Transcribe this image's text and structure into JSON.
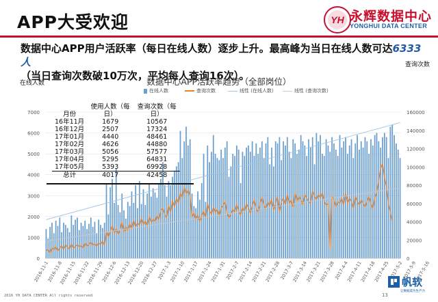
{
  "slide": {
    "title": "APP大受欢迎",
    "logo_cn": "永辉数据中心",
    "logo_en": "YONGHUI DATA CENTER",
    "logo_mark": "YH",
    "desc_line1_a": "数据中心APP用户活跃率（每日在线人数）逐步上升。最高峰为当日在线人数可达",
    "desc_line1_hl": "6333人",
    "desc_line2": "（当日查询次数破10万次，平均每人查询16次）。",
    "footer": "2016 YH DATA CENTER All rights reserved",
    "page_number": "13",
    "brand_name": "帆软",
    "brand_sub": "让数据成为生产力"
  },
  "table": {
    "headers": [
      "月份",
      "使用人数（每日）",
      "查询次数（每日）"
    ],
    "rows": [
      [
        "16年11月",
        "1679",
        "10567"
      ],
      [
        "16年12月",
        "2507",
        "17324"
      ],
      [
        "17年01月",
        "4440",
        "48461"
      ],
      [
        "17年02月",
        "4626",
        "44880"
      ],
      [
        "17年03月",
        "5056",
        "57577"
      ],
      [
        "17年04月",
        "5295",
        "64831"
      ],
      [
        "17年05月",
        "5393",
        "69928"
      ]
    ],
    "total": [
      "总计",
      "4017",
      "42458"
    ]
  },
  "chart_data": {
    "type": "bar",
    "title": "数据中心APP活跃率趋势（全部岗位）",
    "ylabel": "在线人数",
    "y2label": "查询次数",
    "ylim": [
      0,
      7000
    ],
    "y2lim": [
      0,
      160000
    ],
    "yticks": [
      0,
      1000,
      2000,
      3000,
      4000,
      5000,
      6000,
      7000
    ],
    "y2ticks": [
      0,
      20000,
      40000,
      60000,
      80000,
      100000,
      120000,
      140000,
      160000
    ],
    "x_tick_labels": [
      "2016-11-1",
      "2016-11-8",
      "2016-11-15",
      "2016-11-22",
      "2016-11-29",
      "2016-12-6",
      "2016-12-13",
      "2016-12-20",
      "2016-12-27",
      "2017-1-3",
      "2017-1-10",
      "2017-1-17",
      "2017-1-24",
      "2017-1-31",
      "2017-2-7",
      "2017-2-14",
      "2017-2-21",
      "2017-2-28",
      "2017-3-7",
      "2017-3-14",
      "2017-3-21",
      "2017-3-28",
      "2017-4-4",
      "2017-4-11",
      "2017-4-18",
      "2017-4-25",
      "2017-5-2",
      "2017-5-9",
      "2017-5-16"
    ],
    "legend": [
      "在线人数",
      "查询次数",
      "线性 (在线人数)",
      "线性 (查询次数)"
    ],
    "colors": {
      "bars": "#6b9fd0",
      "query": "#e8822a",
      "trend_users": "#9ec4e6",
      "trend_query": "#c9c9c9"
    },
    "series": [
      {
        "name": "在线人数",
        "type": "bar",
        "axis": "left",
        "values": [
          1400,
          950,
          1500,
          1700,
          1200,
          1800,
          1550,
          1950,
          1250,
          1700,
          1600,
          1450,
          1250,
          2050,
          1600,
          1850,
          1950,
          1350,
          1700,
          1550,
          1800,
          1400,
          1650,
          1950,
          1500,
          1750,
          1200,
          1850,
          1600,
          1450,
          1700,
          3600,
          2100,
          3400,
          3800,
          2650,
          4300,
          2550,
          2200,
          3100,
          2300,
          1900,
          2700,
          2500,
          3200,
          2650,
          3500,
          2400,
          3700,
          2600,
          3300,
          2550,
          3100,
          3550,
          2950,
          3350,
          3150,
          2900,
          3600,
          3800,
          4600,
          3500,
          2950,
          3700,
          3500,
          3900,
          4200,
          4400,
          4600,
          6100,
          4800,
          5600,
          6300,
          5400,
          5700,
          3100,
          2500,
          2400,
          3200,
          2800,
          3600,
          5000,
          2700,
          5400,
          4600,
          5100,
          5900,
          5000,
          4800,
          4700,
          5200,
          4800,
          5300,
          5600,
          3900,
          4400,
          5000,
          4900,
          5400,
          5200,
          3600,
          5100,
          4900,
          5300,
          5400,
          5100,
          5600,
          4900,
          5500,
          5000,
          5300,
          5600,
          4800,
          5500,
          5800,
          4500,
          5300,
          4400,
          5600,
          5500,
          5800,
          4700,
          5600,
          5400,
          5800,
          5100,
          4800,
          5700,
          5500,
          5000,
          5200,
          5900,
          5600,
          5400,
          4900,
          5700,
          5300,
          5800,
          4500,
          6000,
          5600,
          5900,
          5000,
          4900,
          5700,
          5400,
          5100,
          5800,
          5500,
          5200,
          4900,
          5900,
          5300,
          5600,
          5800,
          5000,
          5400,
          5700,
          4800,
          5500,
          5900,
          5200,
          5600,
          5300,
          5800,
          5600,
          5000,
          5700,
          5400,
          5900,
          6000,
          5600,
          5300,
          5800,
          6000,
          5800,
          4800,
          6300,
          6400,
          5900,
          5500,
          5200,
          4800
        ]
      },
      {
        "name": "查询次数",
        "type": "line",
        "axis": "right",
        "values": [
          8000,
          10000,
          5500,
          12000,
          9000,
          13000,
          8000,
          11000,
          14000,
          9500,
          15000,
          12000,
          10000,
          16000,
          11000,
          13000,
          15000,
          12500,
          14000,
          11000,
          17000,
          13000,
          15000,
          18000,
          14000,
          16000,
          13000,
          17000,
          15000,
          19000,
          14000,
          30000,
          23000,
          30000,
          36000,
          27000,
          33000,
          26000,
          31000,
          40000,
          28000,
          35000,
          30000,
          38000,
          32000,
          42000,
          34000,
          39000,
          36000,
          44000,
          37000,
          41000,
          35000,
          46000,
          39000,
          43000,
          40000,
          47000,
          42000,
          52000,
          55000,
          48000,
          44000,
          58000,
          50000,
          63000,
          56000,
          66000,
          60000,
          72000,
          66000,
          78000,
          70000,
          75000,
          68000,
          45000,
          50000,
          42000,
          48000,
          40000,
          46000,
          52000,
          44000,
          60000,
          52000,
          48000,
          56000,
          50000,
          54000,
          46000,
          55000,
          58000,
          62000,
          50000,
          44000,
          48000,
          54000,
          50000,
          59000,
          52000,
          47000,
          56000,
          51000,
          60000,
          55000,
          49000,
          58000,
          64000,
          55000,
          50000,
          60000,
          67000,
          58000,
          54000,
          62000,
          57000,
          65000,
          52000,
          60000,
          68000,
          50000,
          62000,
          66000,
          58000,
          70000,
          60000,
          64000,
          55000,
          72000,
          62000,
          68000,
          64000,
          58000,
          70000,
          66000,
          62000,
          60000,
          74000,
          68000,
          64000,
          70000,
          66000,
          72000,
          62000,
          58000,
          60000,
          10000,
          68000,
          64000,
          56000,
          62000,
          60000,
          66000,
          58000,
          72000,
          60000,
          66000,
          62000,
          54000,
          68000,
          62000,
          58000,
          64000,
          60000,
          56000,
          62000,
          68000,
          60000,
          54000,
          66000,
          72000,
          84000,
          98000,
          104000,
          88000,
          78000,
          60000,
          50000,
          40000
        ]
      }
    ]
  }
}
